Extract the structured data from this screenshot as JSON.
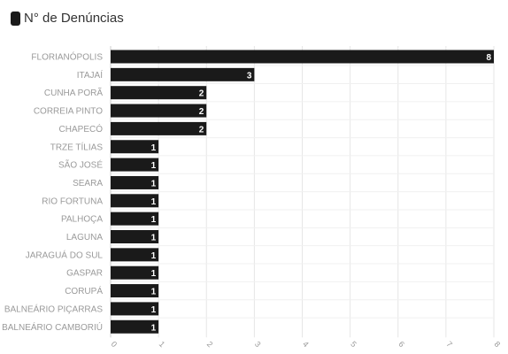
{
  "legend": {
    "label": "N° de Denúncias",
    "swatch_color": "#1a1a1a"
  },
  "colors": {
    "bar": "#1a1a1a",
    "grid": "#e6e6e6",
    "label": "#9a9a9a",
    "value_label": "#ffffff"
  },
  "chart_data": {
    "type": "bar",
    "orientation": "horizontal",
    "categories": [
      "FLORIANÓPOLIS",
      "ITAJAÍ",
      "CUNHA PORÃ",
      "CORREIA PINTO",
      "CHAPECÓ",
      "TRZE TÍLIAS",
      "SÃO JOSÉ",
      "SEARA",
      "RIO FORTUNA",
      "PALHOÇA",
      "LAGUNA",
      "JARAGUÁ DO SUL",
      "GASPAR",
      "CORUPÁ",
      "BALNEÁRIO PIÇARRAS",
      "BALNEÁRIO CAMBORIÚ"
    ],
    "series": [
      {
        "name": "N° de Denúncias",
        "values": [
          8,
          3,
          2,
          2,
          2,
          1,
          1,
          1,
          1,
          1,
          1,
          1,
          1,
          1,
          1,
          1
        ]
      }
    ],
    "xlim": [
      0,
      8
    ],
    "xticks": [
      "0",
      "1",
      "2",
      "3",
      "4",
      "5",
      "6",
      "7",
      "8"
    ],
    "grid": true,
    "data_labels": true,
    "legend_position": "top-left"
  }
}
